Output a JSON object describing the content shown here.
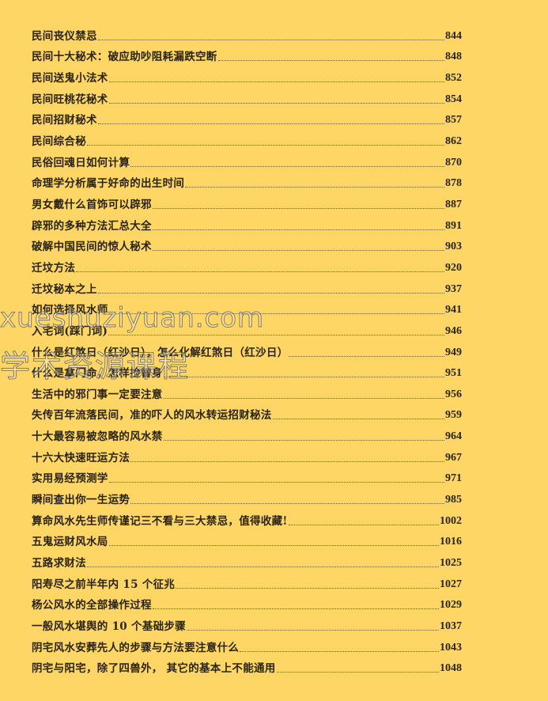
{
  "toc": [
    {
      "title": "民间丧仪禁忌",
      "page": "844"
    },
    {
      "title": "民间十大秘术：破应助吵阻耗漏跌空断",
      "page": "848"
    },
    {
      "title": "民间送鬼小法术",
      "page": "852"
    },
    {
      "title": "民间旺桃花秘术",
      "page": "854"
    },
    {
      "title": "民间招财秘术",
      "page": "857"
    },
    {
      "title": "民间综合秘",
      "page": "862"
    },
    {
      "title": "民俗回魂日如何计算",
      "page": "870"
    },
    {
      "title": "命理学分析属于好命的出生时间",
      "page": "878"
    },
    {
      "title": "男女戴什么首饰可以辟邪",
      "page": "887"
    },
    {
      "title": "辟邪的多种方法汇总大全",
      "page": "891"
    },
    {
      "title": "破解中国民间的惊人秘术",
      "page": "903"
    },
    {
      "title": "迁坟方法",
      "page": "920"
    },
    {
      "title": "迁坟秘本之上",
      "page": "937"
    },
    {
      "title": "如何选择风水师",
      "page": "941"
    },
    {
      "title": "入宅词(踩门词)",
      "page": "946"
    },
    {
      "title": "什么是红煞日（红沙日），怎么化解红煞日（红沙日）",
      "page": "949"
    },
    {
      "title": "什么是拿门命，怎样捡替身",
      "page": "951"
    },
    {
      "title": "生活中的邪门事一定要注意",
      "page": "956"
    },
    {
      "title": "失传百年流落民间，准的吓人的风水转运招财秘法",
      "page": "959"
    },
    {
      "title": "十大最容易被忽略的风水禁",
      "page": "964"
    },
    {
      "title": "十六大快速旺运方法",
      "page": "967"
    },
    {
      "title": "实用易经预测学",
      "page": "971"
    },
    {
      "title": "瞬间查出你一生运势",
      "page": "985"
    },
    {
      "title": "算命风水先生师传谨记三不看与三大禁忌，值得收藏!",
      "page": "1002"
    },
    {
      "title": "五鬼运财风水局",
      "page": "1016"
    },
    {
      "title": "五路求财法",
      "page": "1025"
    },
    {
      "title": "阳寿尽之前半年内 15 个征兆",
      "page": "1027"
    },
    {
      "title": "杨公风水的全部操作过程",
      "page": "1029"
    },
    {
      "title": "一般风水堪舆的 10 个基础步骤",
      "page": "1037"
    },
    {
      "title": "阴宅风水安葬先人的步骤与方法要注意什么",
      "page": "1043"
    },
    {
      "title": "阴宅与阳宅，除了四兽外， 其它的基本上不能通用",
      "page": "1048"
    }
  ],
  "watermark": {
    "line1": "xueshuziyuan.com",
    "line2": "学术资源课程"
  },
  "colors": {
    "background": "#fdd665",
    "text": "#2a2416"
  }
}
